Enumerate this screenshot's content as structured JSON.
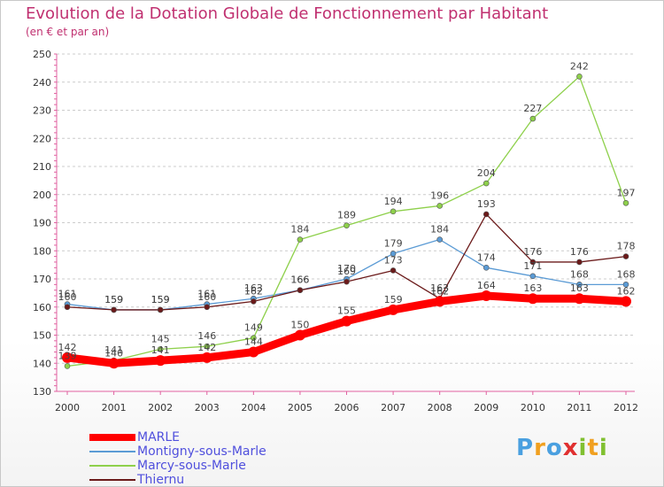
{
  "chart_data": {
    "type": "line",
    "title": "Evolution de la Dotation Globale de Fonctionnement par Habitant",
    "subtitle": "(en € et par an)",
    "categories": [
      "2000",
      "2001",
      "2002",
      "2003",
      "2004",
      "2005",
      "2006",
      "2007",
      "2008",
      "2009",
      "2010",
      "2011",
      "2012"
    ],
    "ylim": [
      130,
      250
    ],
    "yticks": [
      130,
      140,
      150,
      160,
      170,
      180,
      190,
      200,
      210,
      220,
      230,
      240,
      250
    ],
    "grid": true,
    "series": [
      {
        "name": "MARLE",
        "color": "#ff0000",
        "values": [
          142,
          140,
          141,
          142,
          144,
          150,
          155,
          159,
          162,
          164,
          163,
          163,
          162
        ]
      },
      {
        "name": "Montigny-sous-Marle",
        "color": "#5b9bd5",
        "values": [
          161,
          159,
          159,
          161,
          163,
          166,
          170,
          179,
          184,
          174,
          171,
          168,
          168
        ]
      },
      {
        "name": "Marcy-sous-Marle",
        "color": "#8ed04b",
        "values": [
          139,
          141,
          145,
          146,
          149,
          184,
          189,
          194,
          196,
          204,
          227,
          242,
          197
        ]
      },
      {
        "name": "Thiernu",
        "color": "#6b1a1a",
        "values": [
          160,
          159,
          159,
          160,
          162,
          166,
          169,
          173,
          163,
          193,
          176,
          176,
          178
        ]
      }
    ]
  },
  "legend": {
    "items": [
      {
        "label": "MARLE"
      },
      {
        "label": "Montigny-sous-Marle"
      },
      {
        "label": "Marcy-sous-Marle"
      },
      {
        "label": "Thiernu"
      }
    ]
  },
  "logo": {
    "letters": [
      "P",
      "r",
      "o",
      "x",
      "i",
      "t",
      "i"
    ],
    "colors": [
      "#4aa0e0",
      "#f0a020",
      "#4aa0e0",
      "#e03030",
      "#80c030",
      "#f0a020",
      "#80c030"
    ]
  }
}
